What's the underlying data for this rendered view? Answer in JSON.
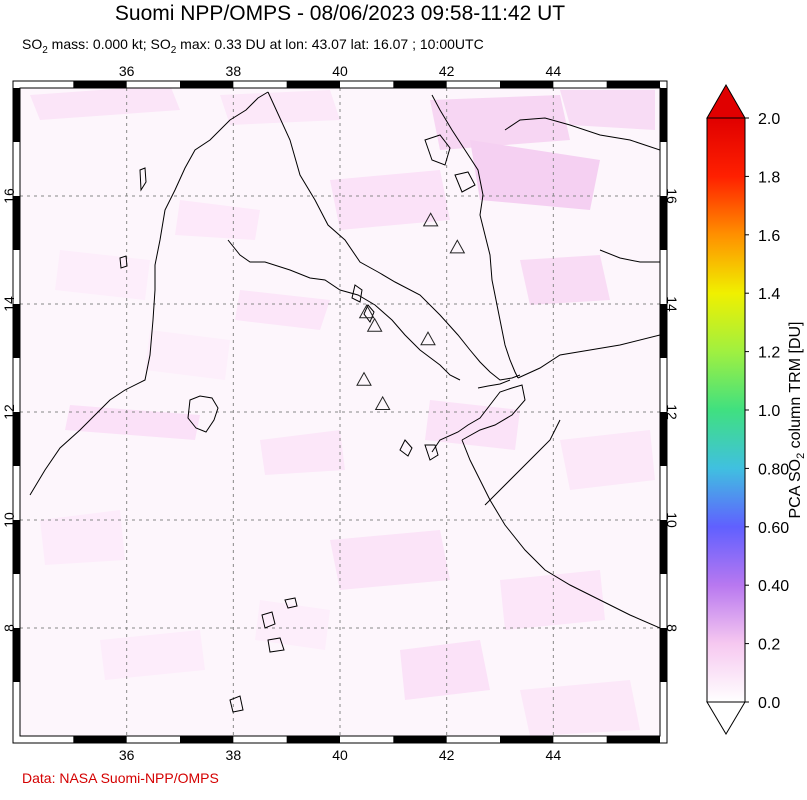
{
  "title": "Suomi NPP/OMPS - 08/06/2023 09:58-11:42 UT",
  "subtitle": {
    "mass_prefix": "SO",
    "mass_sub": "2",
    "mass_text": " mass: 0.000 kt; SO",
    "max_sub": "2",
    "max_text": " max: 0.33 DU at lon: 43.07 lat: 16.07 ; 10:00UTC"
  },
  "credit": "Data: NASA Suomi-NPP/OMPS",
  "map": {
    "lon_ticks": [
      "36",
      "38",
      "40",
      "42",
      "44"
    ],
    "lat_ticks": [
      "16",
      "14",
      "12",
      "10",
      "8"
    ],
    "lon_range": [
      34,
      46
    ],
    "lat_range": [
      6,
      18
    ],
    "grid": "dashed"
  },
  "colorbar": {
    "label_prefix": "PCA SO",
    "label_sub": "2",
    "label_suffix": " column TRM [DU]",
    "ticks": [
      "2.0",
      "1.8",
      "1.6",
      "1.4",
      "1.2",
      "1.0",
      "0.80",
      "0.60",
      "0.40",
      "0.2",
      "0.0"
    ],
    "range": [
      0.0,
      2.0
    ],
    "colors": [
      "#ffffff",
      "#f6c8f0",
      "#b878f0",
      "#6060ff",
      "#40c0e0",
      "#40e080",
      "#a0f040",
      "#f0f000",
      "#ff9000",
      "#ff2000",
      "#e00000"
    ]
  },
  "volcanoes": [
    {
      "lon": 41.7,
      "lat": 15.55
    },
    {
      "lon": 42.2,
      "lat": 15.05
    },
    {
      "lon": 40.5,
      "lat": 13.85
    },
    {
      "lon": 40.65,
      "lat": 13.6
    },
    {
      "lon": 41.65,
      "lat": 13.35
    },
    {
      "lon": 40.45,
      "lat": 12.6
    },
    {
      "lon": 40.8,
      "lat": 12.15
    }
  ]
}
